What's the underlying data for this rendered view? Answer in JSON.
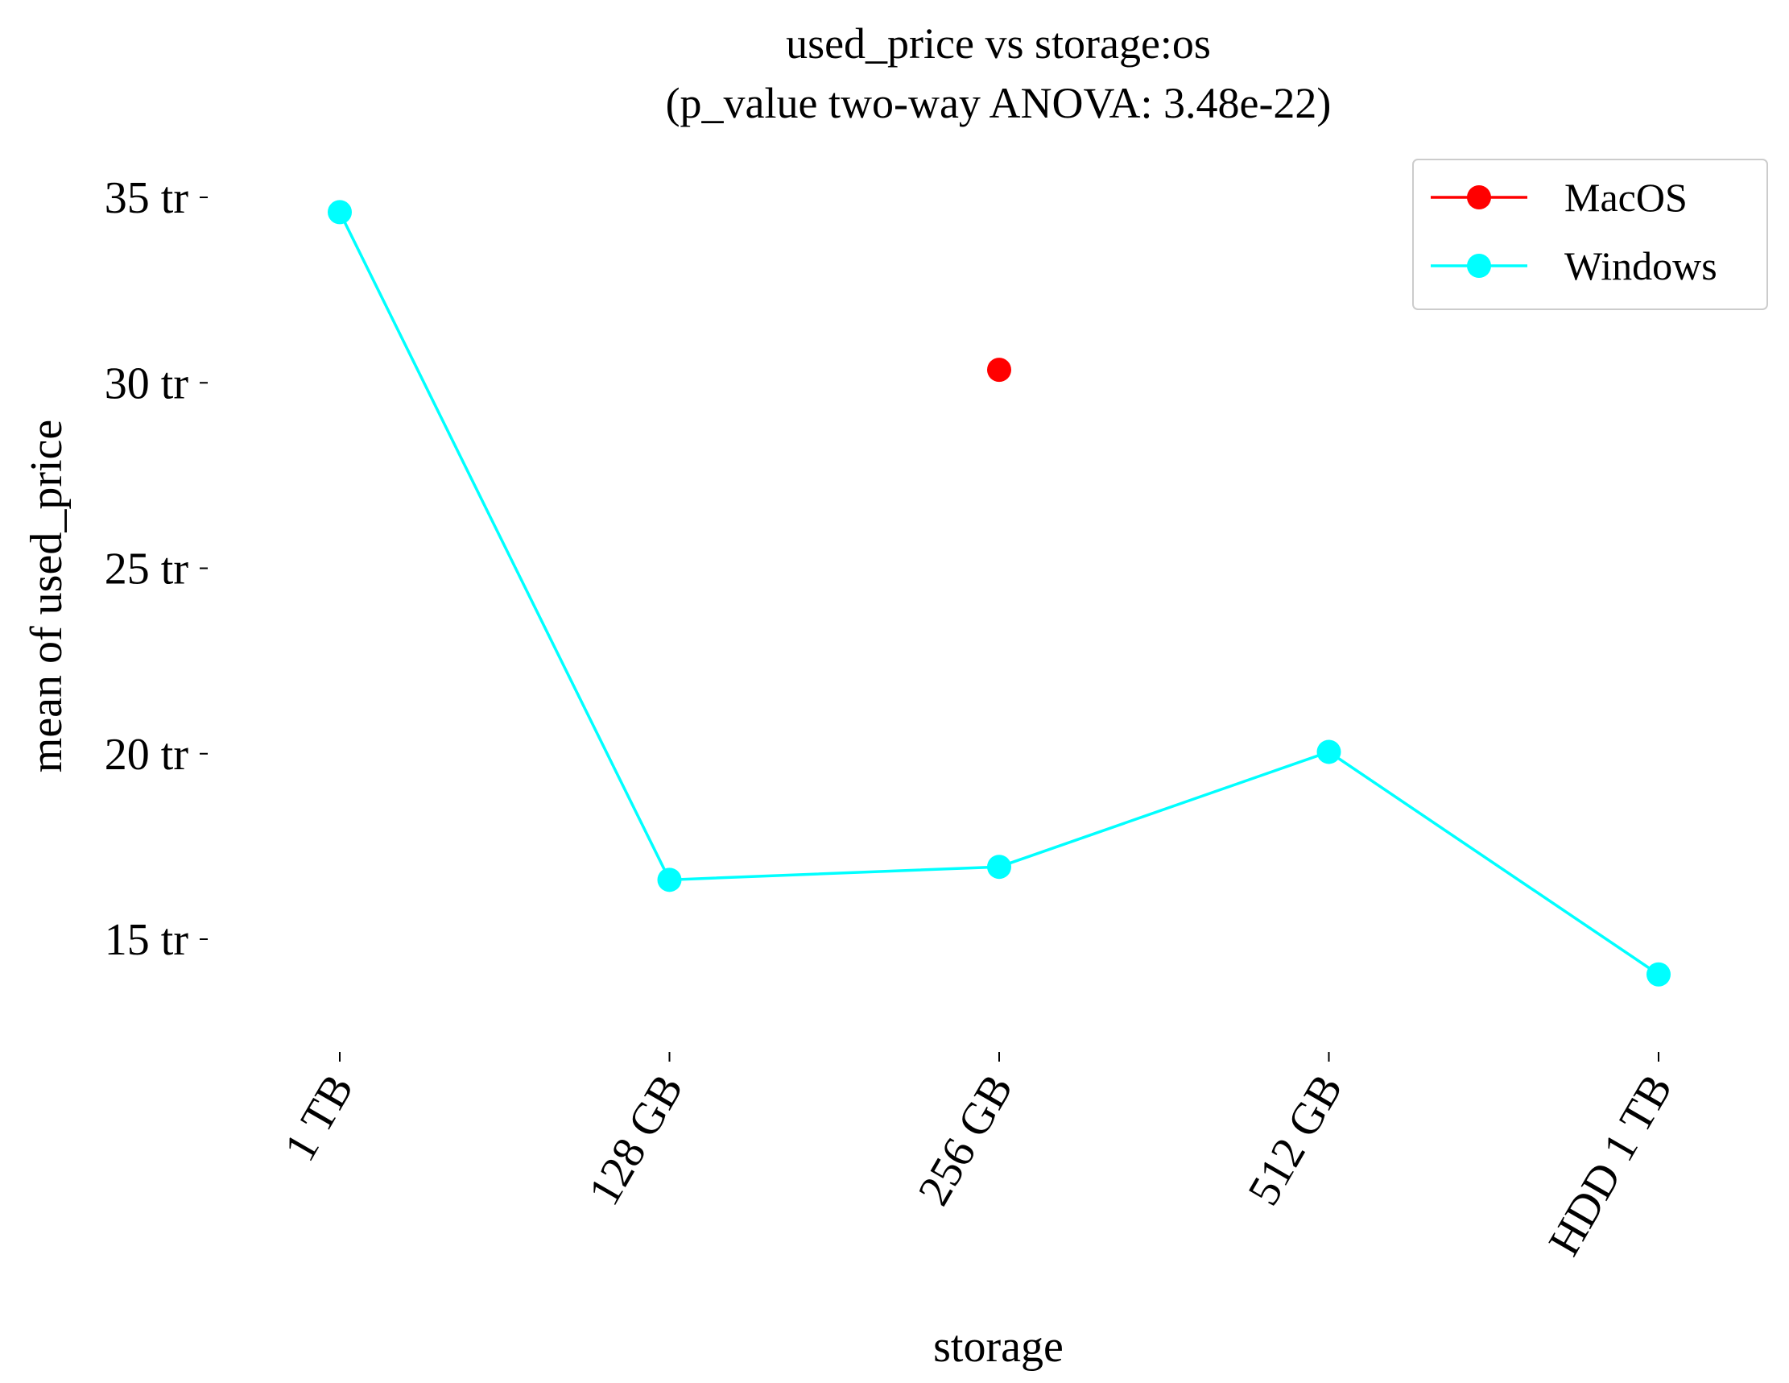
{
  "chart_data": {
    "type": "line",
    "title": "used_price vs storage:os",
    "subtitle": "(p_value two-way ANOVA: 3.48e-22)",
    "xlabel": "storage",
    "ylabel": "mean of used_price",
    "categories": [
      "1 TB",
      "128 GB",
      "256 GB",
      "512 GB",
      "HDD 1 TB"
    ],
    "yticks": [
      15,
      20,
      25,
      30,
      35
    ],
    "ytick_labels": [
      "15 tr",
      "20 tr",
      "25 tr",
      "30 tr",
      "35 tr"
    ],
    "ylim": [
      12.3,
      36.2
    ],
    "grid": false,
    "legend_position": "top-right",
    "series": [
      {
        "name": "MacOS",
        "color": "#ff0000",
        "values": [
          null,
          null,
          30.35,
          null,
          null
        ]
      },
      {
        "name": "Windows",
        "color": "#00ffff",
        "values": [
          34.6,
          16.6,
          16.95,
          20.05,
          14.05
        ]
      }
    ]
  }
}
